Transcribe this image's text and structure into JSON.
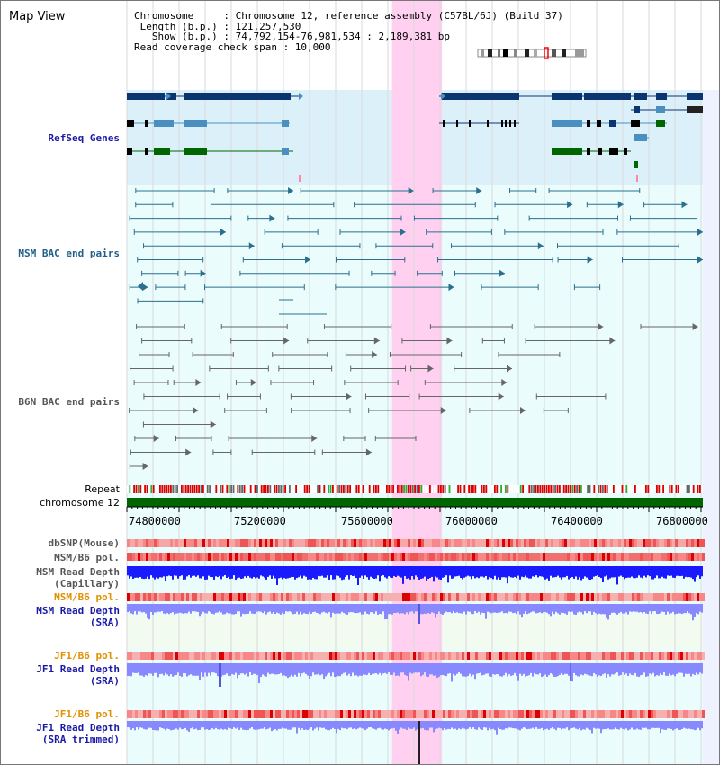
{
  "title": "Map View",
  "info": {
    "chromosome_line": "Chromosome     : Chromosome 12, reference assembly (C57BL/6J) (Build 37)",
    "length_line": " Length (b.p.) : 121,257,530",
    "show_line": "   Show (b.p.) : 74,792,154-76,981,534 : 2,189,381 bp",
    "coverage_line": "Read coverage check span : 10,000"
  },
  "tracks": {
    "refseq": "RefSeq Genes",
    "msm_bac": "MSM BAC end pairs",
    "b6n_bac": "B6N BAC end pairs",
    "repeat": "Repeat",
    "chromosome": "chromosome 12",
    "dbsnp": "dbSNP(Mouse)",
    "msm_pol": "MSM/B6 pol.",
    "msm_depth_cap_1": "MSM Read Depth",
    "msm_depth_cap_2": "(Capillary)",
    "msm_pol_sra": "MSM/B6 pol.",
    "msm_depth_sra_1": "MSM Read Depth",
    "msm_depth_sra_2": "(SRA)",
    "jf1_pol": "JF1/B6 pol.",
    "jf1_depth_1": "JF1 Read Depth",
    "jf1_depth_2": "(SRA)",
    "jf1_pol_trim": "JF1/B6 pol.",
    "jf1_trim_1": "JF1 Read Depth",
    "jf1_trim_2": "(SRA trimmed)"
  },
  "axis": {
    "start_bp": 74792154,
    "end_bp": 76981534,
    "ticks": [
      "74800000",
      "75200000",
      "75600000",
      "76000000",
      "76400000",
      "76800000"
    ],
    "highlight_bp": [
      75800000,
      75990000
    ]
  },
  "colors": {
    "refseq_dark": "#0a3570",
    "refseq_light": "#4a8fbf",
    "refseq_green": "#006600",
    "msm_bac": "#2a6f8f",
    "b6n_bac": "#666666",
    "chromosome": "#006600",
    "highlight": "#ffd0f0",
    "depth_capillary": "#1a1aff",
    "depth_sra": "#8888ff"
  }
}
